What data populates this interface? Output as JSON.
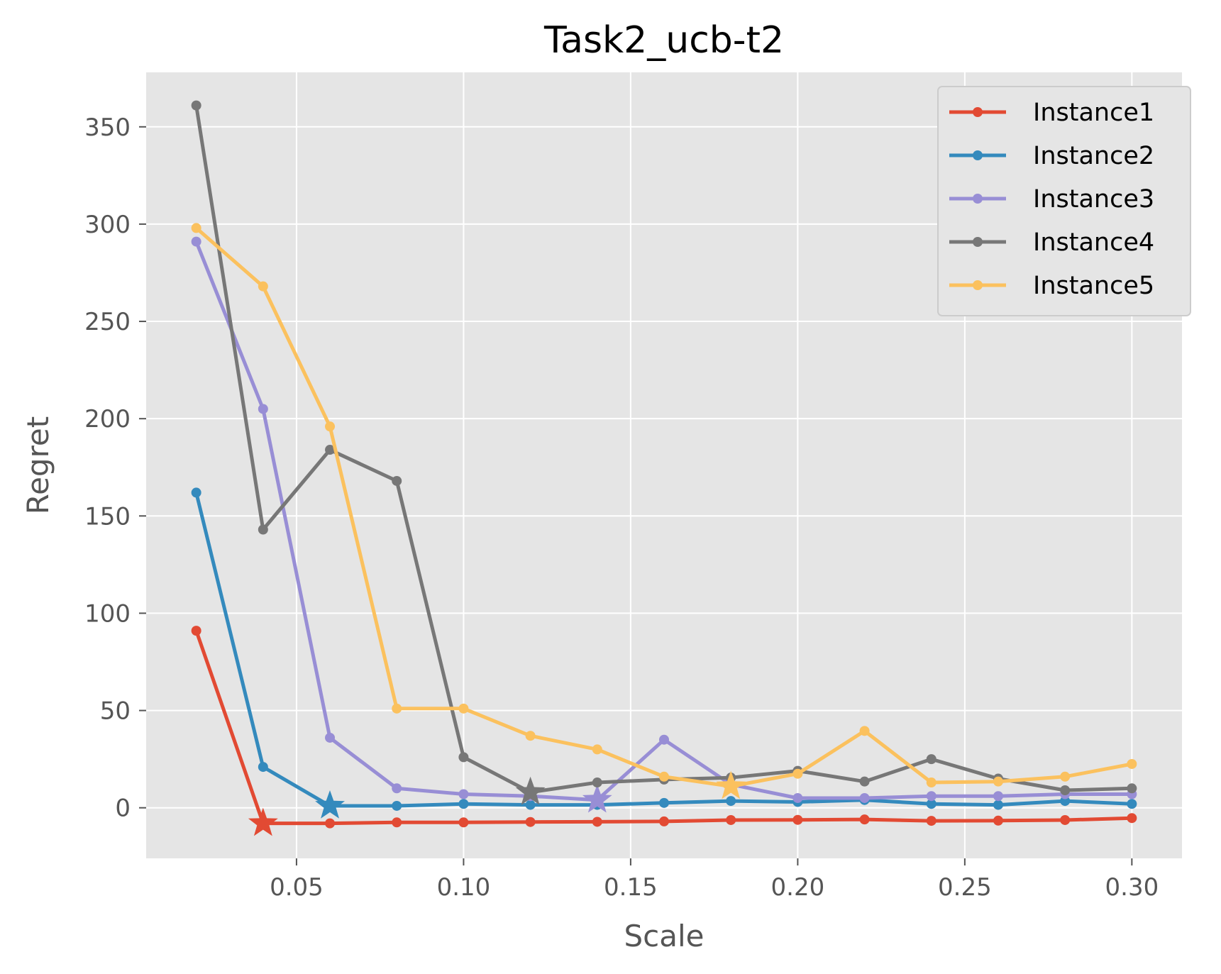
{
  "chart_data": {
    "type": "line",
    "title": "Task2_ucb-t2",
    "xlabel": "Scale",
    "ylabel": "Regret",
    "xlim": [
      0.005,
      0.315
    ],
    "ylim": [
      -26,
      378
    ],
    "xticks": [
      0.05,
      0.1,
      0.15,
      0.2,
      0.25,
      0.3
    ],
    "xtick_labels": [
      "0.05",
      "0.10",
      "0.15",
      "0.20",
      "0.25",
      "0.30"
    ],
    "yticks": [
      0,
      50,
      100,
      150,
      200,
      250,
      300,
      350
    ],
    "ytick_labels": [
      "0",
      "50",
      "100",
      "150",
      "200",
      "250",
      "300",
      "350"
    ],
    "grid": true,
    "legend_position": "top-right",
    "x": [
      0.02,
      0.04,
      0.06,
      0.08,
      0.1,
      0.12,
      0.14,
      0.16,
      0.18,
      0.2,
      0.22,
      0.24,
      0.26,
      0.28,
      0.3
    ],
    "series": [
      {
        "name": "Instance1",
        "color": "#E24A33",
        "values": [
          91,
          -8,
          -8,
          -7.5,
          -7.5,
          -7.3,
          -7.2,
          -7,
          -6.3,
          -6.2,
          -6,
          -6.7,
          -6.6,
          -6.3,
          -5.3
        ],
        "best": {
          "x": 0.04,
          "y": -8
        }
      },
      {
        "name": "Instance2",
        "color": "#348ABD",
        "values": [
          162,
          21,
          1,
          1,
          2,
          1.5,
          1.5,
          2.5,
          3.5,
          3,
          4,
          2,
          1.5,
          3.5,
          2
        ],
        "best": {
          "x": 0.06,
          "y": 1
        }
      },
      {
        "name": "Instance3",
        "color": "#988ED5",
        "values": [
          291,
          205,
          36,
          10,
          7,
          6,
          4,
          35,
          12,
          5,
          5,
          6,
          6,
          7,
          7
        ],
        "best": {
          "x": 0.14,
          "y": 4
        }
      },
      {
        "name": "Instance4",
        "color": "#777777",
        "values": [
          361,
          143,
          184,
          168,
          26,
          8,
          13,
          14.5,
          15.5,
          19,
          13.5,
          25,
          15,
          9,
          10
        ],
        "best": {
          "x": 0.12,
          "y": 8
        }
      },
      {
        "name": "Instance5",
        "color": "#FBC15E",
        "values": [
          298,
          268,
          196,
          51,
          51,
          37,
          30,
          16,
          11,
          17.5,
          39.5,
          13,
          13.5,
          16,
          22.5
        ],
        "best": {
          "x": 0.18,
          "y": 11
        }
      }
    ]
  },
  "colors": {
    "plot_background": "#E5E5E5",
    "grid": "#FFFFFF",
    "legend_background": "#E5E5E5",
    "legend_border": "#CCCCCC"
  }
}
